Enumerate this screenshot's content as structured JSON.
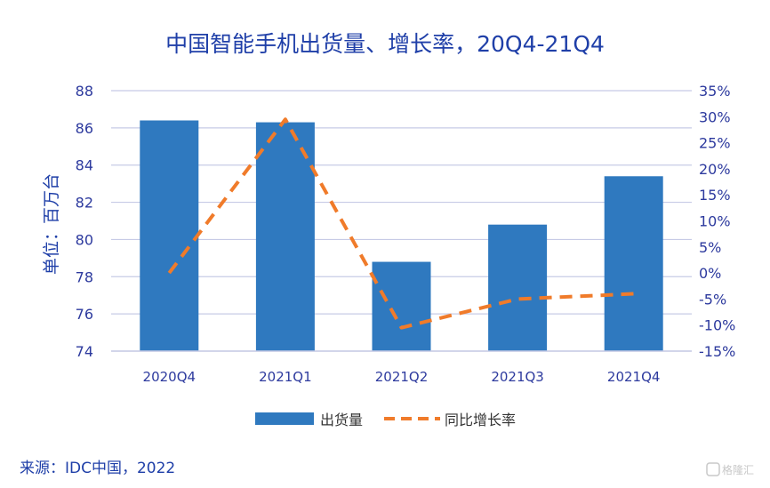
{
  "chart_data": {
    "type": "bar",
    "title": "中国智能手机出货量、增长率，20Q4-21Q4",
    "ylabel": "单位：百万台",
    "categories": [
      "2020Q4",
      "2021Q1",
      "2021Q2",
      "2021Q3",
      "2021Q4"
    ],
    "ylim": [
      74,
      88
    ],
    "yticks": [
      74,
      76,
      78,
      80,
      82,
      84,
      86,
      88
    ],
    "y2lim": [
      -15,
      35
    ],
    "y2ticks": [
      "-15%",
      "-10%",
      "-5%",
      "0%",
      "5%",
      "10%",
      "15%",
      "20%",
      "25%",
      "30%",
      "35%"
    ],
    "series": [
      {
        "name": "出货量",
        "type": "bar",
        "axis": "left",
        "color": "#2f79bf",
        "values": [
          86.4,
          86.3,
          78.8,
          80.8,
          83.4
        ]
      },
      {
        "name": "同比增长率",
        "type": "line",
        "style": "dashed",
        "axis": "right",
        "color": "#f07b2a",
        "values": [
          0,
          29.5,
          -10.5,
          -5,
          -4
        ]
      }
    ],
    "grid": true,
    "legend": "bottom",
    "source": "来源：IDC中国，2022",
    "watermark": "格隆汇"
  }
}
